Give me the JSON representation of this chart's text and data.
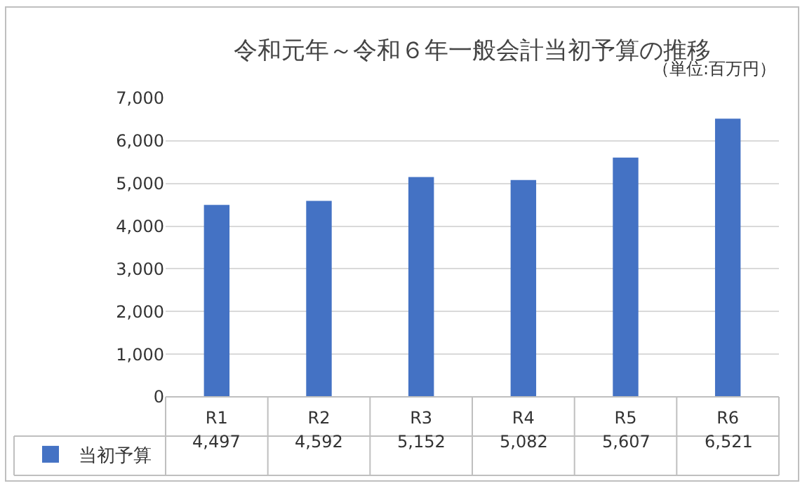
{
  "chart_data": {
    "type": "bar",
    "title": "令和元年～令和６年一般会計当初予算の推移",
    "annotations": [
      "（単位:百万円）"
    ],
    "categories": [
      "R1",
      "R2",
      "R3",
      "R4",
      "R5",
      "R6"
    ],
    "series": [
      {
        "name": "当初予算",
        "color": "#4472c4",
        "values": [
          4497,
          4592,
          5152,
          5082,
          5607,
          6521
        ],
        "value_labels": [
          "4,497",
          "4,592",
          "5,152",
          "5,082",
          "5,607",
          "6,521"
        ]
      }
    ],
    "ylim": [
      0,
      7000
    ],
    "yticks": [
      {
        "value": 0,
        "label": "0"
      },
      {
        "value": 1000,
        "label": "1,000"
      },
      {
        "value": 2000,
        "label": "2,000"
      },
      {
        "value": 3000,
        "label": "3,000"
      },
      {
        "value": 4000,
        "label": "4,000"
      },
      {
        "value": 5000,
        "label": "5,000"
      },
      {
        "value": 6000,
        "label": "6,000"
      },
      {
        "value": 7000,
        "label": "7,000"
      }
    ],
    "grid": "y",
    "legend": "bottom left"
  }
}
